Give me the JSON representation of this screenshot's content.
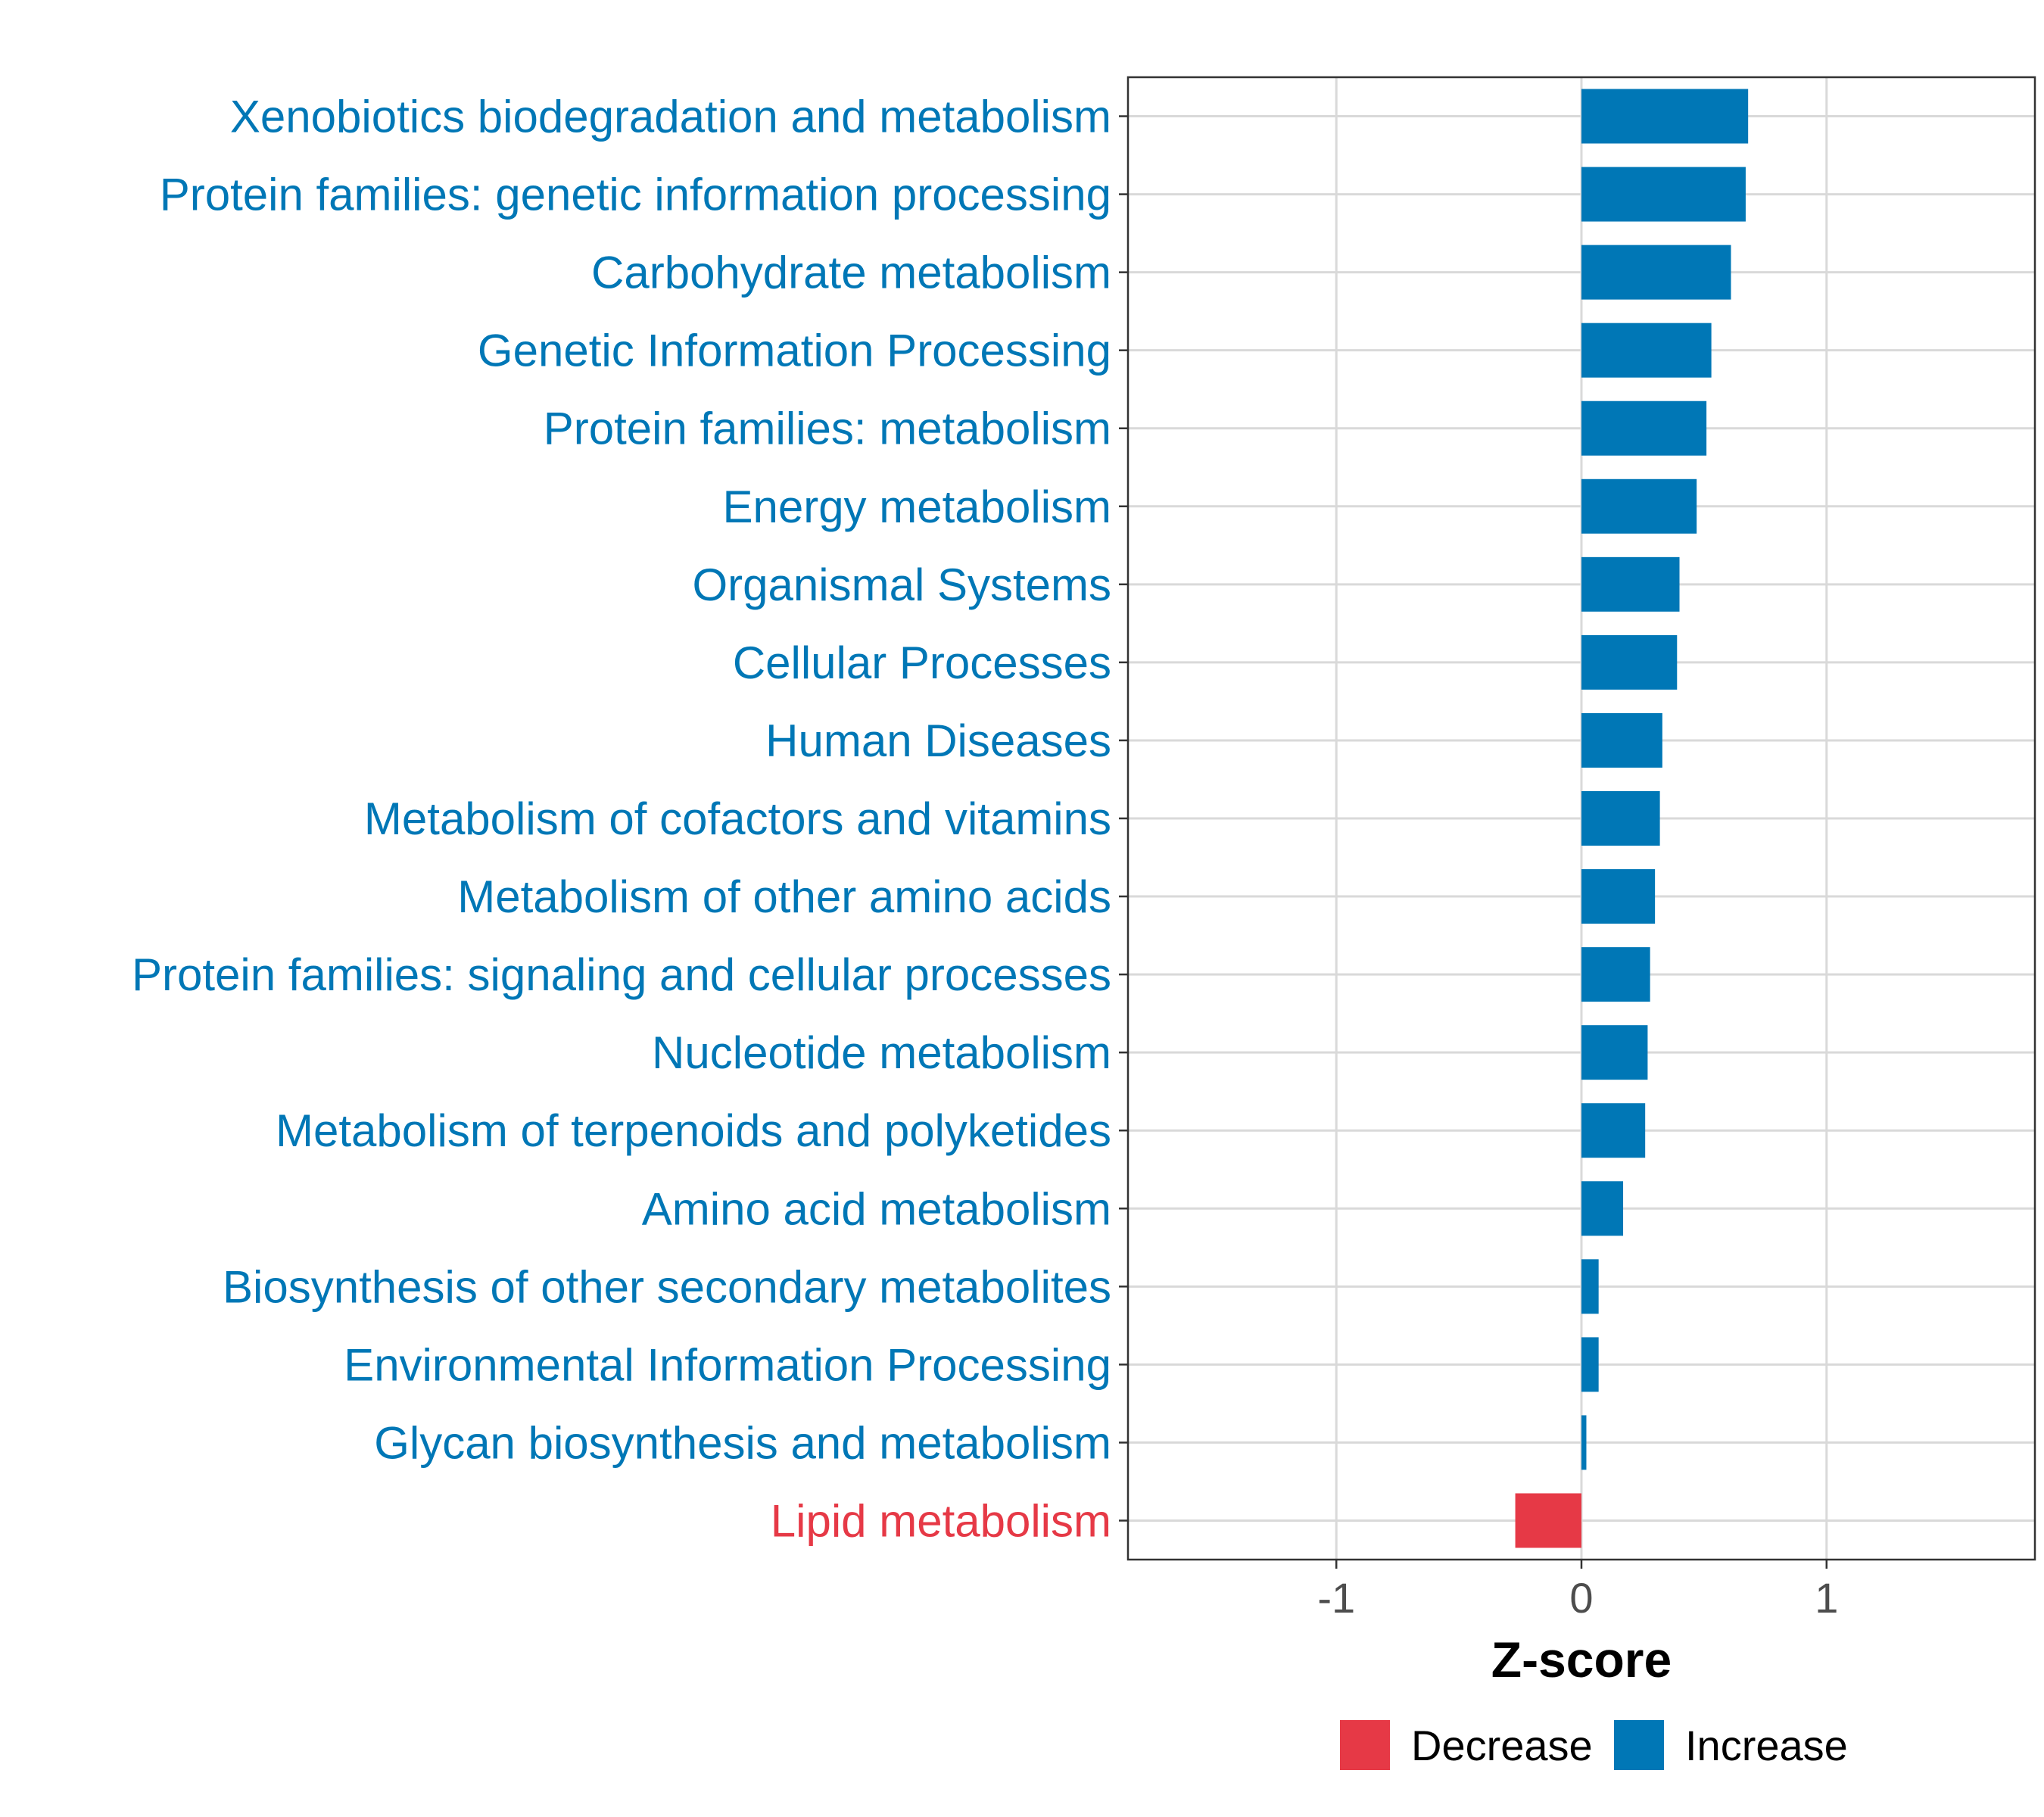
{
  "chart_data": {
    "type": "bar",
    "orientation": "horizontal",
    "categories": [
      "Xenobiotics biodegradation and metabolism",
      "Protein families: genetic information processing",
      "Carbohydrate metabolism",
      "Genetic Information Processing",
      "Protein families: metabolism",
      "Energy metabolism",
      "Organismal Systems",
      "Cellular Processes",
      "Human Diseases",
      "Metabolism of cofactors and vitamins",
      "Metabolism of other amino acids",
      "Protein families: signaling and cellular processes",
      "Nucleotide metabolism",
      "Metabolism of terpenoids and polyketides",
      "Amino acid metabolism",
      "Biosynthesis of other secondary metabolites",
      "Environmental Information Processing",
      "Glycan biosynthesis and metabolism",
      "Lipid metabolism"
    ],
    "values": [
      0.68,
      0.67,
      0.61,
      0.53,
      0.51,
      0.47,
      0.4,
      0.39,
      0.33,
      0.32,
      0.3,
      0.28,
      0.27,
      0.26,
      0.17,
      0.07,
      0.07,
      0.02,
      -0.27
    ],
    "groups": [
      "Increase",
      "Increase",
      "Increase",
      "Increase",
      "Increase",
      "Increase",
      "Increase",
      "Increase",
      "Increase",
      "Increase",
      "Increase",
      "Increase",
      "Increase",
      "Increase",
      "Increase",
      "Increase",
      "Increase",
      "Increase",
      "Decrease"
    ],
    "xlabel": "Z-score",
    "ylabel": "",
    "title": "",
    "xlim": [
      -1.85,
      1.85
    ],
    "xticks": [
      -1,
      0,
      1
    ],
    "xtick_labels": [
      "-1",
      "0",
      "1"
    ],
    "grid": true,
    "legend": {
      "position": "bottom",
      "entries": [
        {
          "label": "Decrease",
          "color": "#e63946"
        },
        {
          "label": "Increase",
          "color": "#0077b6"
        }
      ]
    },
    "colors": {
      "Decrease": "#e63946",
      "Increase": "#0077b6"
    }
  }
}
